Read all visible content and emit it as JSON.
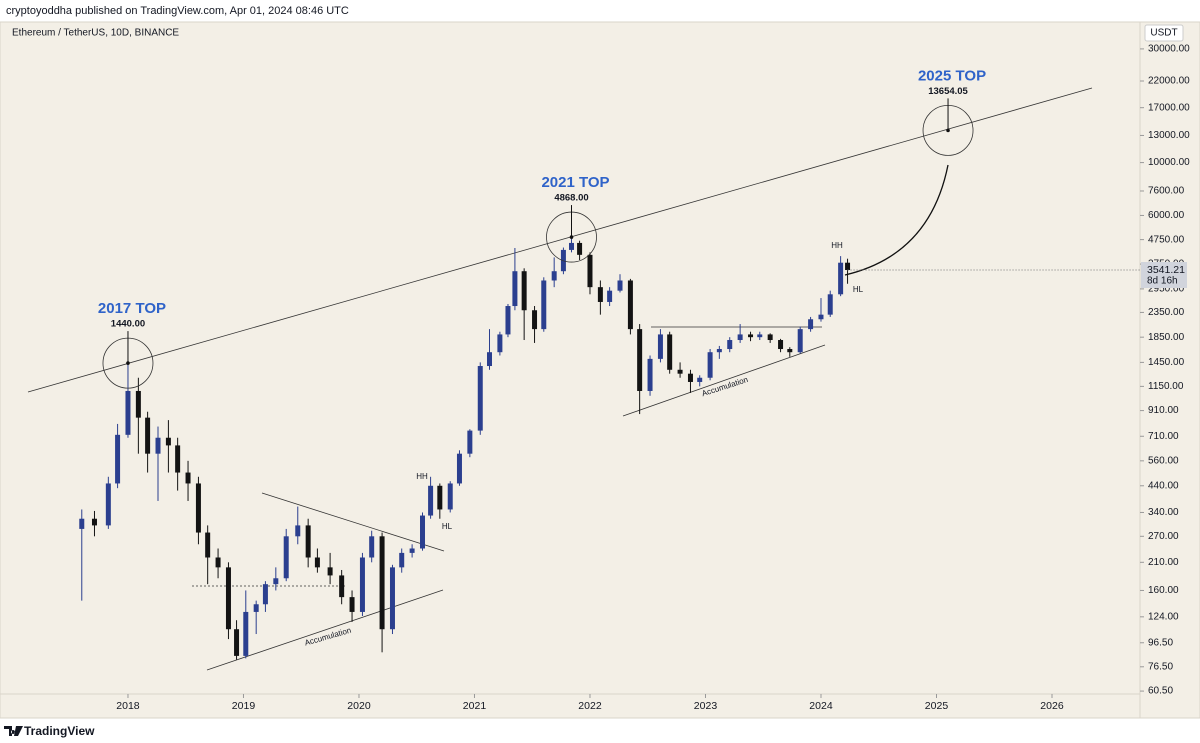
{
  "header": "cryptoyoddha published on TradingView.com, Apr 01, 2024 08:46 UTC",
  "footer": "TradingView",
  "chart_data": {
    "type": "candlestick",
    "title": "Ethereum / TetherUS, 10D, BINANCE",
    "currency": "USDT",
    "log_scale": true,
    "grid": false,
    "up_color": "#2b3f8f",
    "down_color": "#131313",
    "x": [
      2017.6,
      2017.71,
      2017.83,
      2017.91,
      2018.0,
      2018.09,
      2018.17,
      2018.26,
      2018.35,
      2018.43,
      2018.52,
      2018.61,
      2018.69,
      2018.78,
      2018.87,
      2018.94,
      2019.02,
      2019.11,
      2019.19,
      2019.28,
      2019.37,
      2019.47,
      2019.56,
      2019.64,
      2019.75,
      2019.85,
      2019.94,
      2020.03,
      2020.11,
      2020.2,
      2020.29,
      2020.37,
      2020.46,
      2020.55,
      2020.62,
      2020.7,
      2020.79,
      2020.87,
      2020.96,
      2021.05,
      2021.13,
      2021.22,
      2021.29,
      2021.35,
      2021.43,
      2021.52,
      2021.6,
      2021.69,
      2021.77,
      2021.84,
      2021.91,
      2022.0,
      2022.09,
      2022.17,
      2022.26,
      2022.35,
      2022.43,
      2022.52,
      2022.61,
      2022.69,
      2022.78,
      2022.87,
      2022.95,
      2023.04,
      2023.12,
      2023.21,
      2023.3,
      2023.39,
      2023.47,
      2023.56,
      2023.65,
      2023.73,
      2023.82,
      2023.91,
      2024.0,
      2024.08,
      2024.17,
      2024.23
    ],
    "open": [
      290,
      320,
      300,
      450,
      720,
      1100,
      850,
      600,
      700,
      650,
      500,
      450,
      280,
      220,
      200,
      110,
      85,
      130,
      140,
      170,
      180,
      270,
      300,
      220,
      200,
      185,
      150,
      130,
      220,
      270,
      110,
      200,
      230,
      240,
      330,
      440,
      350,
      450,
      600,
      750,
      1400,
      1600,
      1900,
      2500,
      3500,
      2400,
      2000,
      3200,
      3500,
      4300,
      4600,
      4100,
      3000,
      2600,
      2900,
      3200,
      2000,
      1100,
      1500,
      1900,
      1350,
      1300,
      1200,
      1250,
      1600,
      1650,
      1800,
      1900,
      1850,
      1900,
      1800,
      1650,
      1600,
      2000,
      2200,
      2300,
      2800,
      3800
    ],
    "high": [
      350,
      345,
      480,
      800,
      1440,
      1250,
      900,
      780,
      830,
      700,
      560,
      480,
      300,
      240,
      210,
      120,
      160,
      145,
      175,
      200,
      290,
      360,
      320,
      240,
      230,
      195,
      160,
      230,
      285,
      280,
      205,
      240,
      250,
      340,
      480,
      450,
      460,
      620,
      760,
      1450,
      2000,
      1950,
      2550,
      4380,
      3600,
      2500,
      3300,
      4000,
      4400,
      4868,
      4700,
      4200,
      3200,
      3000,
      3400,
      3250,
      2100,
      1550,
      2000,
      1950,
      1450,
      1350,
      1280,
      1650,
      1700,
      1850,
      2100,
      1950,
      1950,
      1920,
      1820,
      1680,
      2050,
      2250,
      2700,
      2900,
      4050,
      3950
    ],
    "low": [
      145,
      270,
      290,
      430,
      700,
      600,
      500,
      380,
      500,
      420,
      380,
      250,
      170,
      180,
      100,
      82,
      83,
      105,
      130,
      160,
      175,
      250,
      200,
      190,
      170,
      140,
      118,
      125,
      210,
      88,
      105,
      190,
      220,
      235,
      320,
      320,
      340,
      440,
      580,
      720,
      1350,
      1550,
      1850,
      2400,
      1800,
      1750,
      1950,
      3000,
      3400,
      4200,
      3900,
      2800,
      2300,
      2500,
      2850,
      1900,
      880,
      1050,
      1450,
      1300,
      1250,
      1080,
      1150,
      1220,
      1500,
      1600,
      1750,
      1780,
      1800,
      1750,
      1600,
      1530,
      1580,
      1950,
      2150,
      2250,
      2750,
      3100
    ],
    "close": [
      320,
      300,
      450,
      720,
      1100,
      850,
      600,
      700,
      650,
      500,
      450,
      280,
      220,
      200,
      110,
      85,
      130,
      140,
      170,
      180,
      270,
      300,
      220,
      200,
      185,
      150,
      130,
      220,
      270,
      110,
      200,
      230,
      240,
      330,
      440,
      350,
      450,
      600,
      750,
      1400,
      1600,
      1900,
      2500,
      3500,
      2400,
      2000,
      3200,
      3500,
      4300,
      4600,
      4100,
      3000,
      2600,
      2900,
      3200,
      2000,
      1100,
      1500,
      1900,
      1350,
      1300,
      1200,
      1250,
      1600,
      1650,
      1800,
      1900,
      1850,
      1900,
      1800,
      1650,
      1600,
      2000,
      2200,
      2300,
      2800,
      3800,
      3541.21
    ],
    "last_price": 3541.21,
    "countdown": "8d 16h",
    "xlim": [
      2016.892,
      2026.762
    ],
    "xticks": [
      2018,
      2019,
      2020,
      2021,
      2022,
      2023,
      2024,
      2025,
      2026
    ],
    "ylim": [
      55.5,
      32700
    ],
    "yticks": [
      {
        "value": 60.5,
        "label": "60.50"
      },
      {
        "value": 76.5,
        "label": "76.50"
      },
      {
        "value": 96.5,
        "label": "96.50"
      },
      {
        "value": 124,
        "label": "124.00"
      },
      {
        "value": 160,
        "label": "160.00"
      },
      {
        "value": 210,
        "label": "210.00"
      },
      {
        "value": 270,
        "label": "270.00"
      },
      {
        "value": 340,
        "label": "340.00"
      },
      {
        "value": 440,
        "label": "440.00"
      },
      {
        "value": 560,
        "label": "560.00"
      },
      {
        "value": 710,
        "label": "710.00"
      },
      {
        "value": 910,
        "label": "910.00"
      },
      {
        "value": 1150,
        "label": "1150.00"
      },
      {
        "value": 1450,
        "label": "1450.00"
      },
      {
        "value": 1850,
        "label": "1850.00"
      },
      {
        "value": 2350,
        "label": "2350.00"
      },
      {
        "value": 2950,
        "label": "2950.00"
      },
      {
        "value": 3750,
        "label": "3750.00"
      },
      {
        "value": 4750,
        "label": "4750.00"
      },
      {
        "value": 6000,
        "label": "6000.00"
      },
      {
        "value": 7600,
        "label": "7600.00"
      },
      {
        "value": 10000,
        "label": "10000.00"
      },
      {
        "value": 13000,
        "label": "13000.00"
      },
      {
        "value": 17000,
        "label": "17000.00"
      },
      {
        "value": 22000,
        "label": "22000.00"
      },
      {
        "value": 30000,
        "label": "30000.00"
      }
    ],
    "tops": [
      {
        "label": "2017 TOP",
        "x": 2018.0,
        "price": 1440,
        "price_label": "1440.00"
      },
      {
        "label": "2021 TOP",
        "x": 2021.84,
        "price": 4868,
        "price_label": "4868.00"
      },
      {
        "label": "2025 TOP",
        "x": 2025.1,
        "price": 13654.05
      }
    ],
    "top_color": "#2f63c9",
    "labels": [
      "HH",
      "HL",
      "Accumulation",
      "HH",
      "HL",
      "Accumulation"
    ]
  }
}
